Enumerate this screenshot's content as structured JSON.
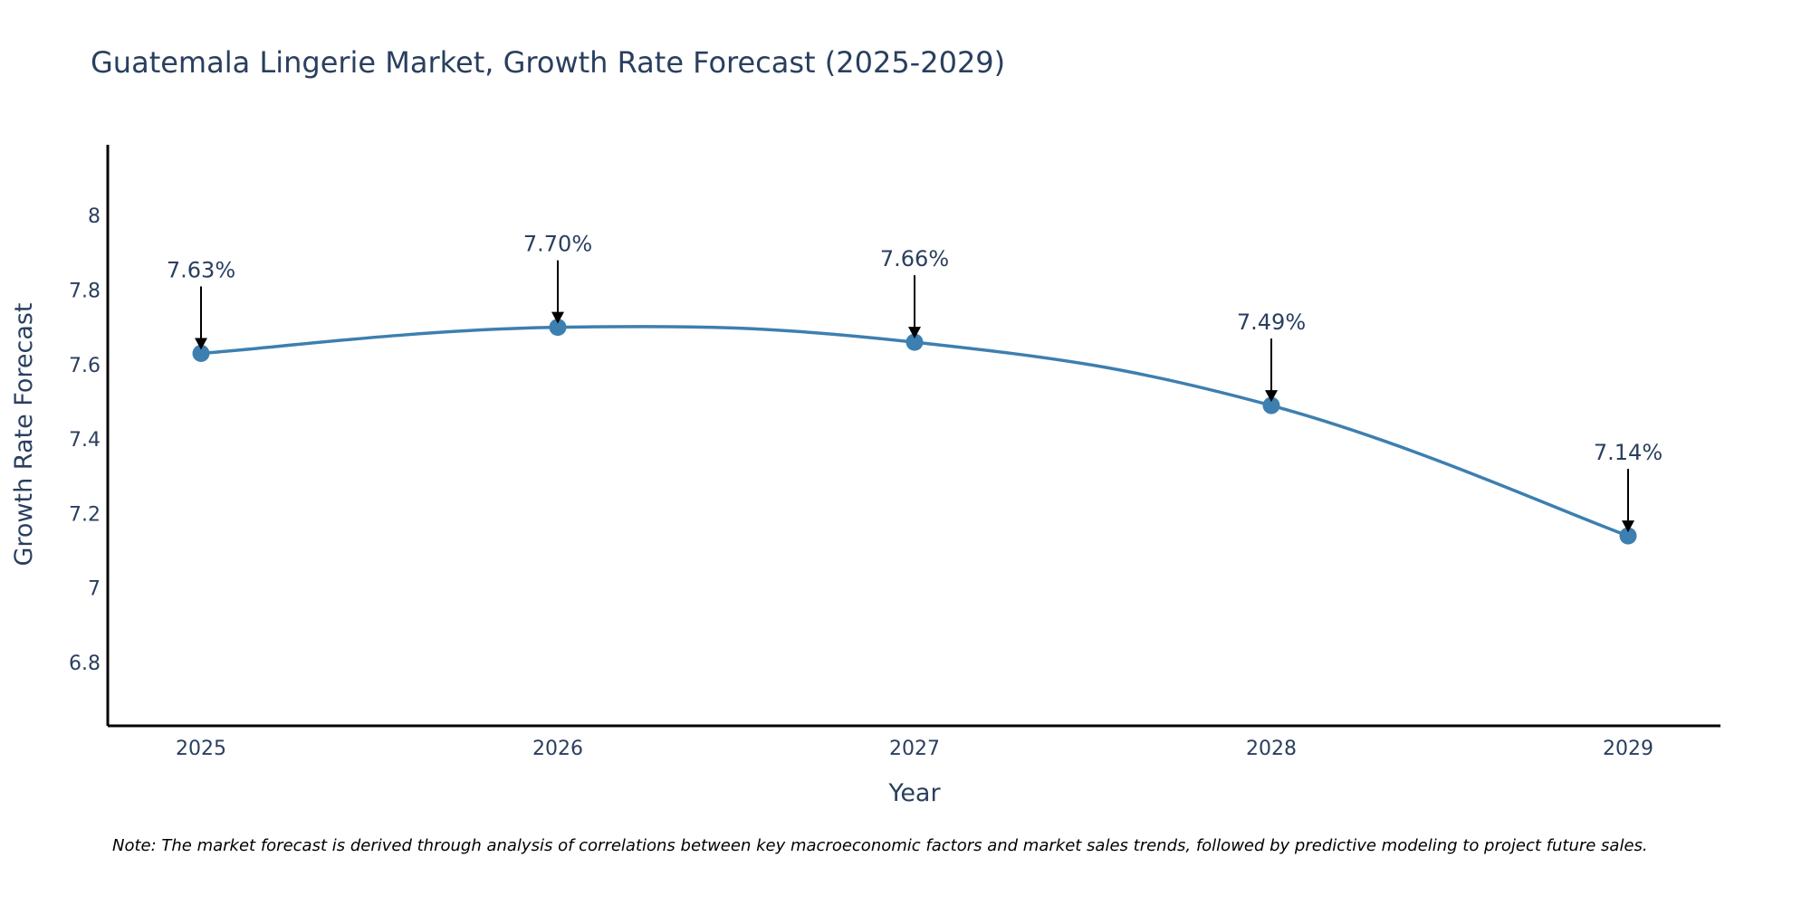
{
  "chart_data": {
    "type": "line",
    "title": "Guatemala Lingerie Market, Growth Rate Forecast (2025-2029)",
    "xlabel": "Year",
    "ylabel": "Growth Rate Forecast",
    "categories": [
      "2025",
      "2026",
      "2027",
      "2028",
      "2029"
    ],
    "values": [
      7.63,
      7.7,
      7.66,
      7.49,
      7.14
    ],
    "data_labels": [
      "7.63%",
      "7.70%",
      "7.66%",
      "7.49%",
      "7.14%"
    ],
    "ylim": [
      6.63,
      8.19
    ],
    "yticks": [
      6.8,
      7,
      7.2,
      7.4,
      7.6,
      7.8,
      8
    ],
    "ytick_labels": [
      "6.8",
      "7",
      "7.2",
      "7.4",
      "7.6",
      "7.8",
      "8"
    ],
    "line_color": "#3d7fb0",
    "marker_color": "#3d7fb0",
    "grid": false,
    "smooth": true
  },
  "note": "Note: The market forecast is derived through analysis of correlations between key macroeconomic factors and market sales trends, followed by predictive modeling to project future sales."
}
